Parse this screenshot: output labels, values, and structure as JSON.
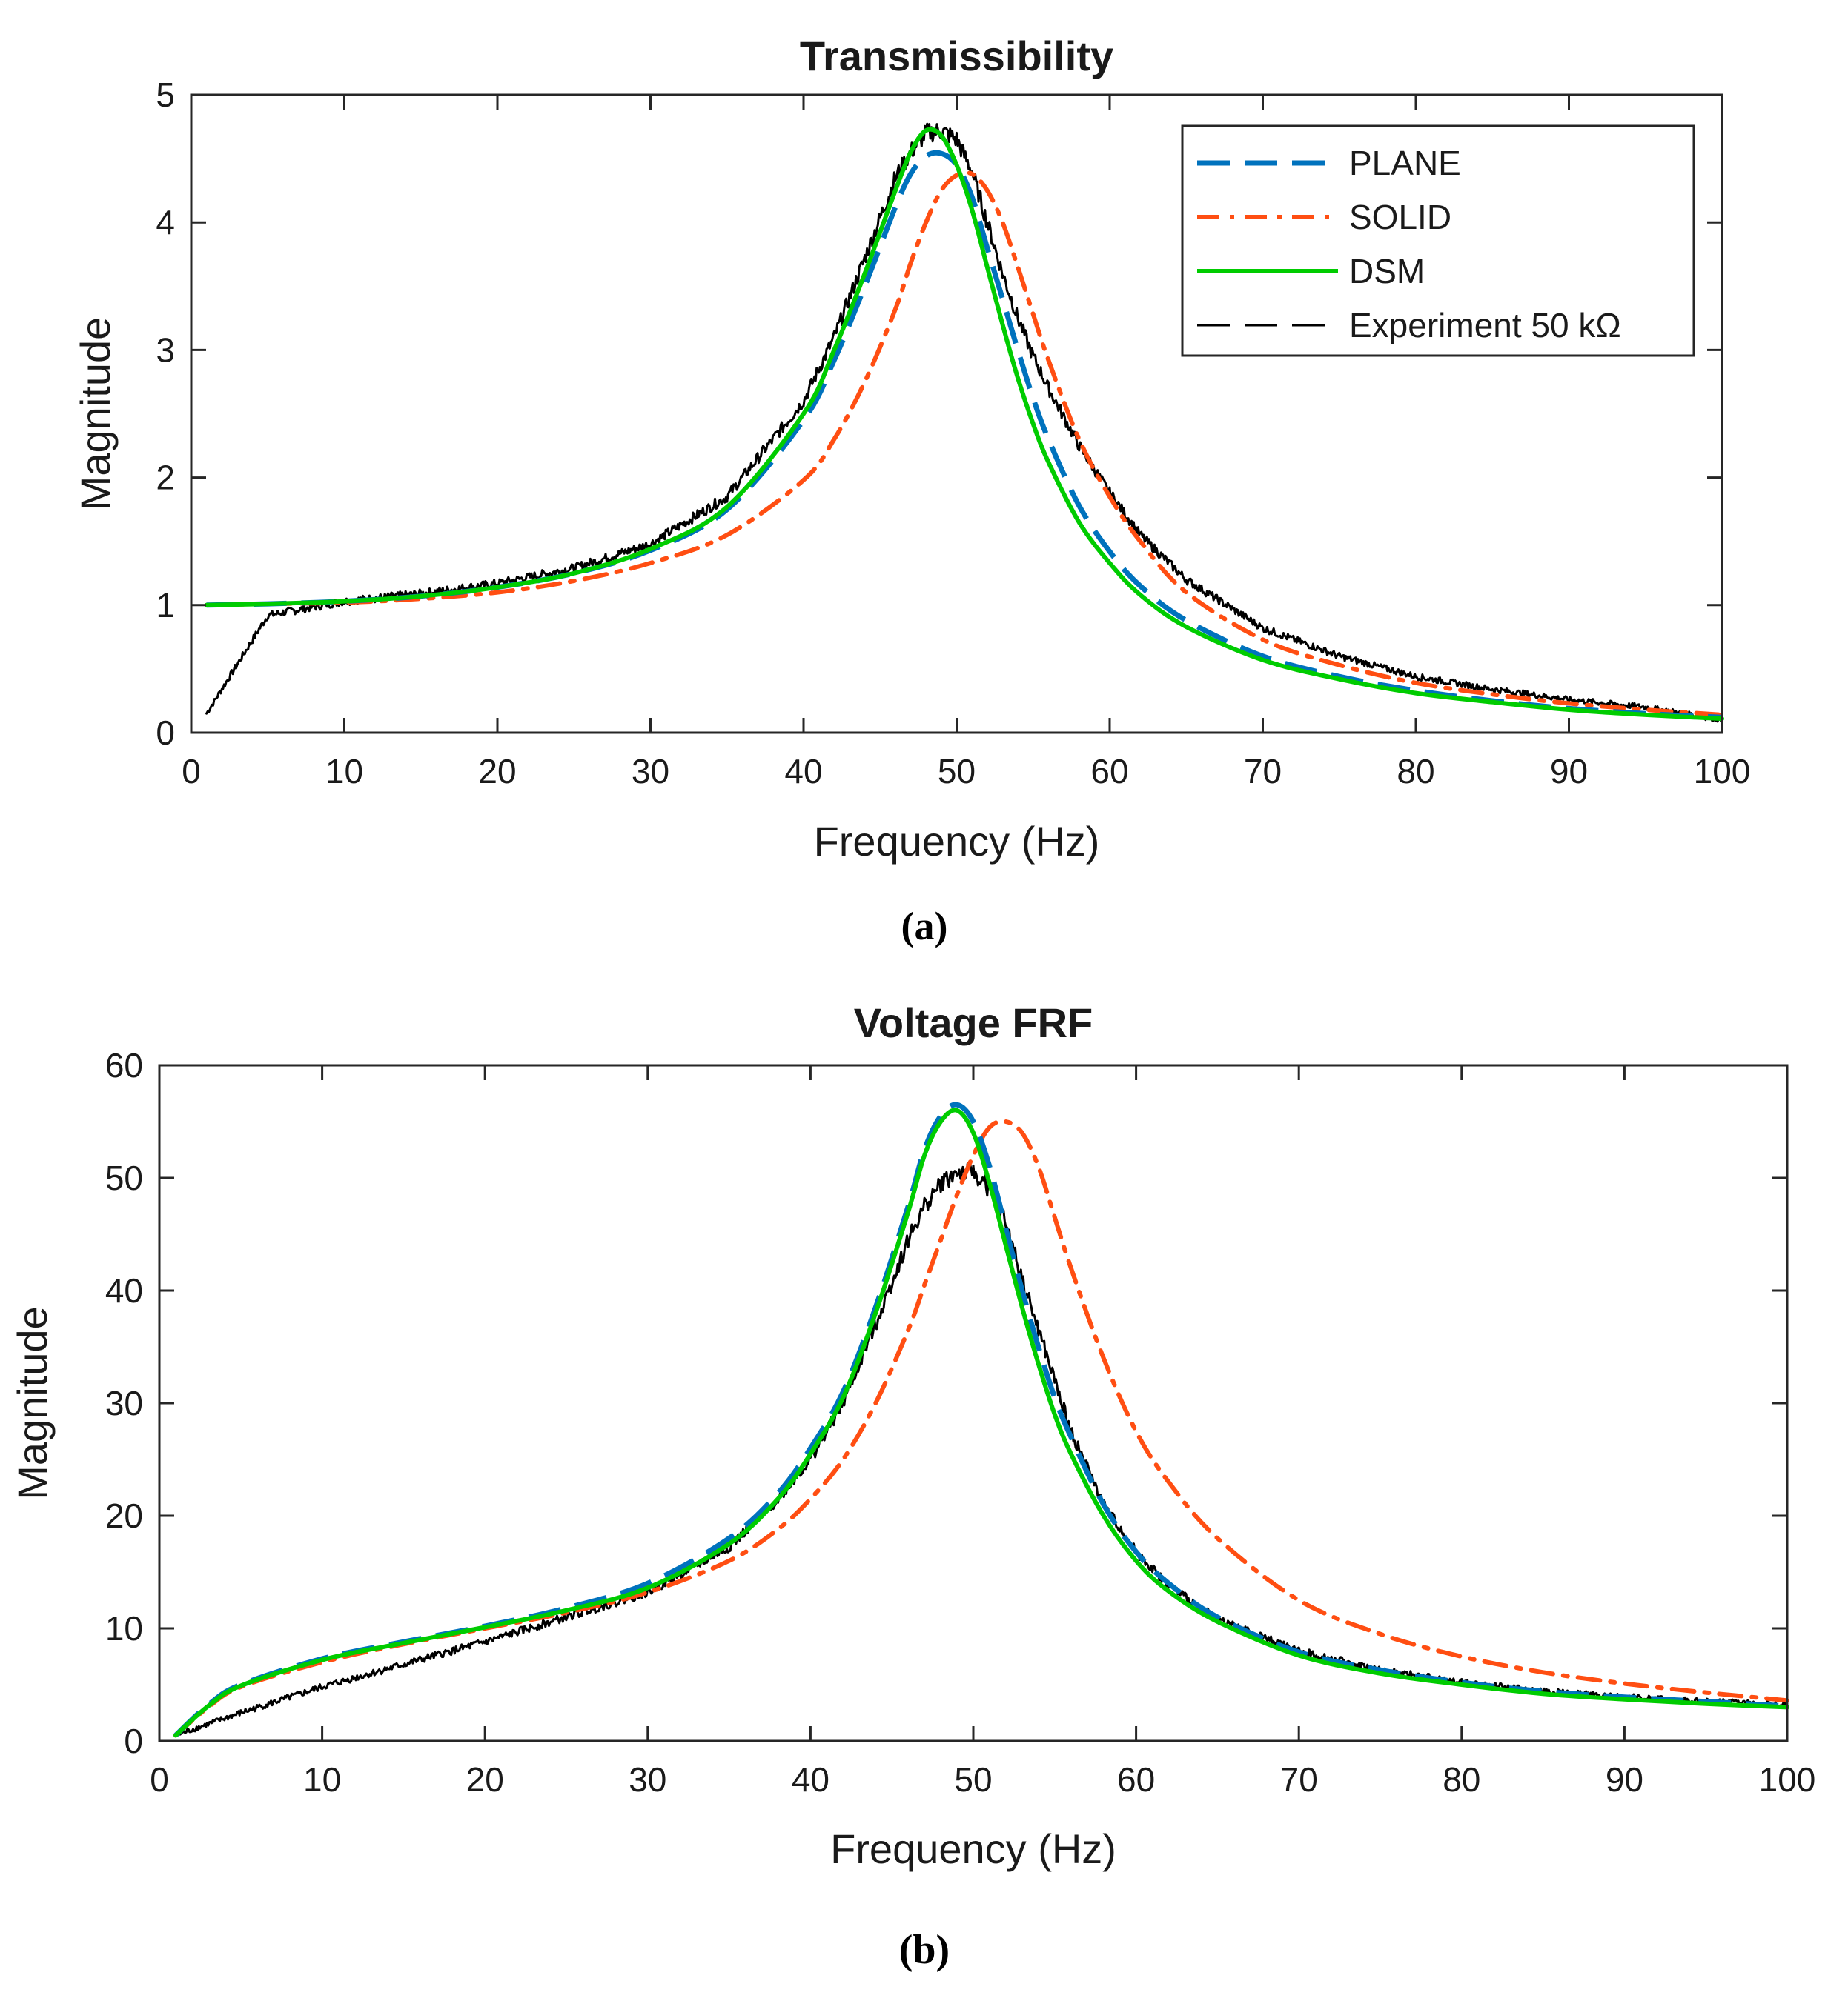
{
  "figure": {
    "panel_labels": [
      "(a)",
      "(b)"
    ]
  },
  "colors": {
    "plane": "#0072BD",
    "solid": "#FF4E12",
    "dsm": "#00CC00",
    "experiment": "#000000",
    "axis": "#262626"
  },
  "chart_data": [
    {
      "type": "line",
      "title": "Transmissibility",
      "xlabel": "Frequency (Hz)",
      "ylabel": "Magnitude",
      "xlim": [
        0,
        100
      ],
      "ylim": [
        0,
        5
      ],
      "xticks": [
        0,
        10,
        20,
        30,
        40,
        50,
        60,
        70,
        80,
        90,
        100
      ],
      "yticks": [
        0,
        1,
        2,
        3,
        4,
        5
      ],
      "legend": {
        "location": "top-right",
        "entries": [
          "PLANE",
          "SOLID",
          "DSM",
          "Experiment 50 kΩ"
        ]
      },
      "x": [
        1,
        5,
        10,
        15,
        20,
        25,
        30,
        35,
        40,
        42,
        44,
        46,
        47,
        48,
        49,
        50,
        51,
        52,
        53,
        54,
        55,
        56,
        58,
        60,
        62,
        65,
        70,
        75,
        80,
        85,
        90,
        95,
        100
      ],
      "series": [
        {
          "name": "PLANE",
          "style": "dashed",
          "values": [
            1.0,
            1.01,
            1.03,
            1.07,
            1.14,
            1.25,
            1.43,
            1.75,
            2.45,
            2.92,
            3.5,
            4.12,
            4.38,
            4.52,
            4.54,
            4.45,
            4.2,
            3.8,
            3.4,
            3.0,
            2.62,
            2.3,
            1.78,
            1.42,
            1.15,
            0.88,
            0.6,
            0.44,
            0.33,
            0.25,
            0.19,
            0.15,
            0.12
          ]
        },
        {
          "name": "SOLID",
          "style": "dashdot",
          "values": [
            1.0,
            1.01,
            1.02,
            1.05,
            1.1,
            1.19,
            1.33,
            1.55,
            1.98,
            2.3,
            2.75,
            3.32,
            3.68,
            4.0,
            4.25,
            4.37,
            4.38,
            4.25,
            4.0,
            3.65,
            3.28,
            2.92,
            2.3,
            1.85,
            1.5,
            1.1,
            0.73,
            0.53,
            0.39,
            0.3,
            0.23,
            0.18,
            0.14
          ]
        },
        {
          "name": "DSM",
          "style": "solid",
          "values": [
            1.0,
            1.01,
            1.03,
            1.07,
            1.14,
            1.25,
            1.44,
            1.77,
            2.5,
            3.0,
            3.6,
            4.25,
            4.55,
            4.72,
            4.68,
            4.45,
            4.1,
            3.65,
            3.2,
            2.78,
            2.42,
            2.12,
            1.65,
            1.33,
            1.08,
            0.83,
            0.57,
            0.42,
            0.31,
            0.24,
            0.18,
            0.14,
            0.11
          ]
        },
        {
          "name": "Experiment 50 kΩ",
          "style": "noisy",
          "values": [
            0.15,
            0.92,
            1.03,
            1.09,
            1.17,
            1.29,
            1.48,
            1.85,
            2.6,
            3.1,
            3.72,
            4.35,
            4.55,
            4.7,
            4.72,
            4.65,
            4.4,
            4.0,
            3.6,
            3.25,
            2.95,
            2.7,
            2.25,
            1.88,
            1.55,
            1.2,
            0.82,
            0.6,
            0.44,
            0.34,
            0.26,
            0.2,
            0.1
          ]
        }
      ]
    },
    {
      "type": "line",
      "title": "Voltage FRF",
      "xlabel": "Frequency (Hz)",
      "ylabel": "Magnitude",
      "xlim": [
        0,
        100
      ],
      "ylim": [
        0,
        60
      ],
      "xticks": [
        0,
        10,
        20,
        30,
        40,
        50,
        60,
        70,
        80,
        90,
        100
      ],
      "yticks": [
        0,
        10,
        20,
        30,
        40,
        50,
        60
      ],
      "x": [
        1,
        3,
        5,
        10,
        15,
        20,
        25,
        30,
        35,
        38,
        40,
        42,
        44,
        46,
        47,
        48,
        49,
        50,
        51,
        52,
        53,
        54,
        55,
        56,
        58,
        60,
        62,
        65,
        70,
        75,
        80,
        85,
        90,
        95,
        100
      ],
      "series": [
        {
          "name": "PLANE",
          "style": "dashed",
          "values": [
            0.5,
            3.2,
            5.0,
            7.3,
            8.8,
            10.2,
            11.8,
            14.0,
            18.0,
            22.0,
            26.0,
            31.0,
            38.5,
            47.5,
            52.5,
            55.5,
            56.5,
            55.0,
            51.0,
            45.5,
            40.0,
            35.0,
            30.5,
            27.0,
            21.0,
            16.8,
            14.0,
            11.0,
            7.9,
            6.3,
            5.2,
            4.4,
            3.9,
            3.5,
            3.1
          ]
        },
        {
          "name": "SOLID",
          "style": "dashdot",
          "values": [
            0.5,
            3.0,
            4.8,
            7.0,
            8.6,
            10.0,
            11.4,
            13.2,
            16.0,
            18.8,
            21.5,
            25.0,
            30.0,
            36.5,
            40.5,
            44.5,
            48.5,
            52.0,
            54.5,
            55.0,
            54.0,
            51.0,
            46.5,
            42.0,
            34.0,
            27.5,
            23.0,
            18.0,
            12.5,
            9.5,
            7.5,
            6.1,
            5.1,
            4.3,
            3.6
          ]
        },
        {
          "name": "DSM",
          "style": "solid",
          "values": [
            0.5,
            3.1,
            4.9,
            7.2,
            8.7,
            10.1,
            11.6,
            13.6,
            17.5,
            21.5,
            25.5,
            30.5,
            38.0,
            47.0,
            52.0,
            55.0,
            56.0,
            54.0,
            49.5,
            44.0,
            38.5,
            33.5,
            29.0,
            25.5,
            20.0,
            16.0,
            13.3,
            10.6,
            7.6,
            6.0,
            5.0,
            4.2,
            3.7,
            3.3,
            3.0
          ]
        },
        {
          "name": "Experiment 50 kΩ",
          "style": "noisy",
          "values": [
            0.5,
            1.5,
            2.5,
            4.8,
            6.8,
            8.8,
            11.0,
            13.2,
            17.2,
            21.5,
            25.0,
            30.0,
            37.0,
            44.5,
            47.5,
            49.5,
            50.5,
            50.5,
            49.0,
            46.0,
            41.0,
            36.5,
            32.0,
            27.5,
            21.0,
            16.8,
            13.8,
            10.8,
            8.0,
            6.3,
            5.2,
            4.4,
            3.9,
            3.5,
            3.2
          ]
        }
      ]
    }
  ]
}
